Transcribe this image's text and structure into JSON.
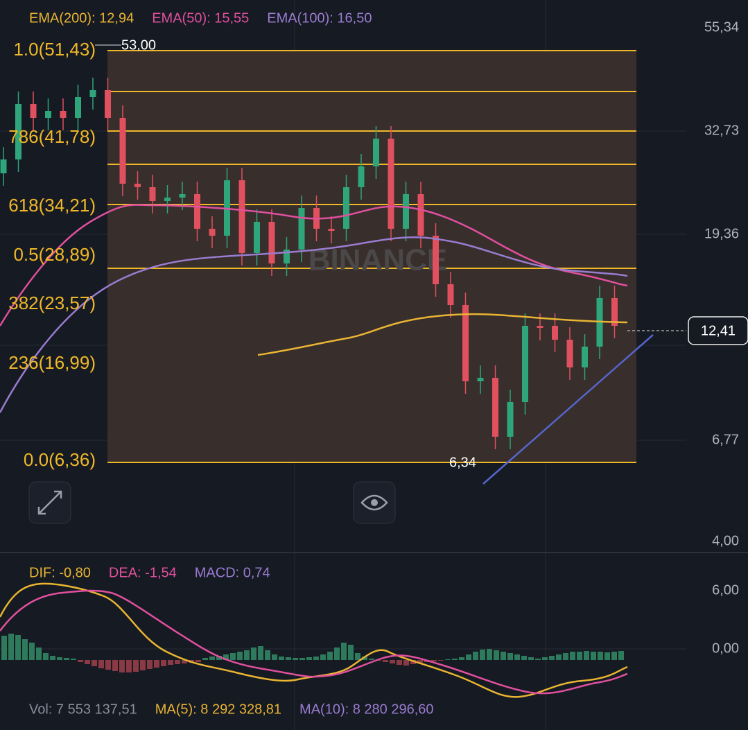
{
  "indicators": [
    {
      "label": "EMA(200): 12,94",
      "color": "#e9b532"
    },
    {
      "label": "EMA(50): 15,55",
      "color": "#e0509e"
    },
    {
      "label": "EMA(100): 16,50",
      "color": "#9a7cd0"
    }
  ],
  "price_axis": [
    "55,34",
    "32,73",
    "19,36",
    "6,77",
    "4,00"
  ],
  "current_price": "12,41",
  "fib_levels": [
    "1.0(51,43)",
    "786(41,78)",
    "618(34,21)",
    "0.5(28,89)",
    "382(23,57)",
    "236(16,99)",
    "0.0(6,36)"
  ],
  "annotations": {
    "high": "53,00",
    "low": "6,34",
    "watermark": "BINANCE"
  },
  "macd": {
    "labels": [
      {
        "label": "DIF: -0,80",
        "color": "#e9b532"
      },
      {
        "label": "DEA: -1,54",
        "color": "#e0509e"
      },
      {
        "label": "MACD: 0,74",
        "color": "#9a7cd0"
      }
    ],
    "axis": [
      "6,00",
      "0,00"
    ]
  },
  "volume": [
    {
      "label": "Vol: 7 553 137,51",
      "color": "#8a8f9c"
    },
    {
      "label": "MA(5): 8 292 328,81",
      "color": "#e9b532"
    },
    {
      "label": "MA(10): 8 280 296,60",
      "color": "#9a7cd0"
    }
  ]
}
